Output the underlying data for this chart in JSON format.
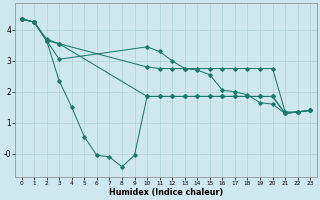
{
  "xlabel": "Humidex (Indice chaleur)",
  "bg_color": "#cfe8f0",
  "grid_color": "#a8cccc",
  "line_color": "#1a7a6e",
  "xlim": [
    -0.5,
    23.5
  ],
  "ylim": [
    -0.75,
    4.85
  ],
  "xtick_vals": [
    0,
    1,
    2,
    3,
    4,
    5,
    6,
    7,
    8,
    9,
    10,
    11,
    12,
    13,
    14,
    15,
    16,
    17,
    18,
    19,
    20,
    21,
    22,
    23
  ],
  "xtick_labels": [
    "0",
    "1",
    "2",
    "3",
    "4",
    "5",
    "6",
    "7",
    "8",
    "9",
    "10",
    "11",
    "12",
    "13",
    "14",
    "15",
    "16",
    "17",
    "18",
    "19",
    "20",
    "21",
    "22",
    "23"
  ],
  "ytick_vals": [
    0,
    1,
    2,
    3,
    4
  ],
  "ytick_labels": [
    "-0",
    "1",
    "2",
    "3",
    "4"
  ],
  "series": [
    {
      "x": [
        0,
        1,
        2,
        3,
        10,
        11,
        12,
        13,
        14,
        15,
        16,
        17,
        18,
        19,
        20,
        21,
        22,
        23
      ],
      "y": [
        4.35,
        4.25,
        3.7,
        3.55,
        2.8,
        2.75,
        2.75,
        2.75,
        2.75,
        2.75,
        2.75,
        2.75,
        2.75,
        2.75,
        2.75,
        1.35,
        1.35,
        1.4
      ]
    },
    {
      "x": [
        0,
        1,
        2,
        3,
        10,
        11,
        12,
        13,
        14,
        15,
        16,
        17,
        18,
        19,
        20,
        21,
        22,
        23
      ],
      "y": [
        4.35,
        4.25,
        3.65,
        3.05,
        3.45,
        3.3,
        3.0,
        2.75,
        2.7,
        2.55,
        2.05,
        2.0,
        1.9,
        1.65,
        1.6,
        1.3,
        1.35,
        1.4
      ]
    },
    {
      "x": [
        0,
        1,
        2,
        3,
        4,
        5,
        6,
        7,
        8,
        9,
        10,
        11,
        12,
        13,
        14,
        15,
        16,
        17,
        18,
        19,
        20,
        21,
        22,
        23
      ],
      "y": [
        4.35,
        4.25,
        3.65,
        2.35,
        1.5,
        0.55,
        -0.05,
        -0.1,
        -0.42,
        -0.05,
        1.85,
        1.85,
        1.85,
        1.85,
        1.85,
        1.85,
        1.85,
        1.85,
        1.85,
        1.85,
        1.85,
        1.3,
        1.35,
        1.4
      ]
    },
    {
      "x": [
        0,
        1,
        2,
        3,
        10,
        11,
        12,
        13,
        14,
        15,
        16,
        17,
        18,
        19,
        20,
        21,
        22,
        23
      ],
      "y": [
        4.35,
        4.25,
        3.65,
        3.55,
        1.85,
        1.85,
        1.85,
        1.85,
        1.85,
        1.85,
        1.85,
        1.85,
        1.85,
        1.85,
        1.85,
        1.3,
        1.35,
        1.4
      ]
    }
  ]
}
